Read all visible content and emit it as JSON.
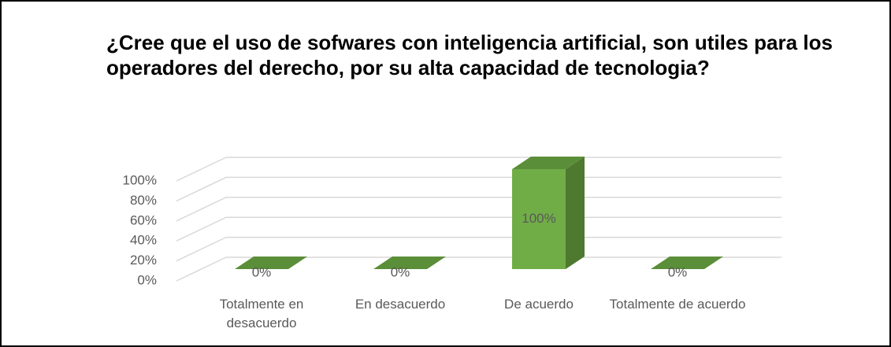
{
  "chart_data": {
    "type": "bar3d",
    "title": "¿Cree que el uso de sofwares con inteligencia artificial, son utiles para los operadores del derecho, por su alta capacidad de tecnologia?",
    "categories": [
      "Totalmente en desacuerdo",
      "En desacuerdo",
      "De acuerdo",
      "Totalmente de acuerdo"
    ],
    "values": [
      0,
      0,
      100,
      0
    ],
    "value_labels": [
      "0%",
      "0%",
      "100%",
      "0%"
    ],
    "color": "#70ad47",
    "ylim": [
      0,
      100
    ],
    "yticks": [
      {
        "value": 0,
        "label": "0%"
      },
      {
        "value": 20,
        "label": "20%"
      },
      {
        "value": 40,
        "label": "40%"
      },
      {
        "value": 60,
        "label": "60%"
      },
      {
        "value": 80,
        "label": "80%"
      },
      {
        "value": 100,
        "label": "100%"
      }
    ],
    "grid": true
  }
}
